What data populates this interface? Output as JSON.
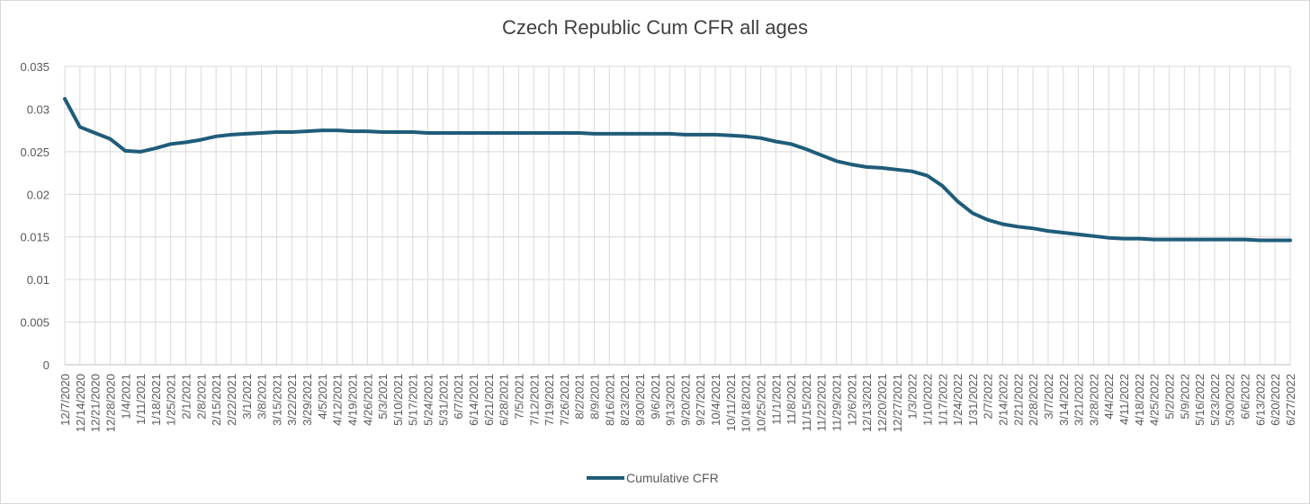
{
  "chart_data": {
    "type": "line",
    "title": "Czech Republic Cum CFR all ages",
    "xlabel": "",
    "ylabel": "",
    "ylim": [
      0,
      0.035
    ],
    "yticks": [
      "0",
      "0.005",
      "0.01",
      "0.015",
      "0.02",
      "0.025",
      "0.03",
      "0.035"
    ],
    "grid": true,
    "legend_position": "bottom",
    "series_color": "#1f5c7a",
    "categories": [
      "12/7/2020",
      "12/14/2020",
      "12/21/2020",
      "12/28/2020",
      "1/4/2021",
      "1/11/2021",
      "1/18/2021",
      "1/25/2021",
      "2/1/2021",
      "2/8/2021",
      "2/15/2021",
      "2/22/2021",
      "3/1/2021",
      "3/8/2021",
      "3/15/2021",
      "3/22/2021",
      "3/29/2021",
      "4/5/2021",
      "4/12/2021",
      "4/19/2021",
      "4/26/2021",
      "5/3/2021",
      "5/10/2021",
      "5/17/2021",
      "5/24/2021",
      "5/31/2021",
      "6/7/2021",
      "6/14/2021",
      "6/21/2021",
      "6/28/2021",
      "7/5/2021",
      "7/12/2021",
      "7/19/2021",
      "7/26/2021",
      "8/2/2021",
      "8/9/2021",
      "8/16/2021",
      "8/23/2021",
      "8/30/2021",
      "9/6/2021",
      "9/13/2021",
      "9/20/2021",
      "9/27/2021",
      "10/4/2021",
      "10/11/2021",
      "10/18/2021",
      "10/25/2021",
      "11/1/2021",
      "11/8/2021",
      "11/15/2021",
      "11/22/2021",
      "11/29/2021",
      "12/6/2021",
      "12/13/2021",
      "12/20/2021",
      "12/27/2021",
      "1/3/2022",
      "1/10/2022",
      "1/17/2022",
      "1/24/2022",
      "1/31/2022",
      "2/7/2022",
      "2/14/2022",
      "2/21/2022",
      "2/28/2022",
      "3/7/2022",
      "3/14/2022",
      "3/21/2022",
      "3/28/2022",
      "4/4/2022",
      "4/11/2022",
      "4/18/2022",
      "4/25/2022",
      "5/2/2022",
      "5/9/2022",
      "5/16/2022",
      "5/23/2022",
      "5/30/2022",
      "6/6/2022",
      "6/13/2022",
      "6/20/2022",
      "6/27/2022"
    ],
    "series": [
      {
        "name": "Cumulative CFR",
        "values": [
          0.0312,
          0.0279,
          0.0272,
          0.0265,
          0.0251,
          0.025,
          0.0254,
          0.0259,
          0.0261,
          0.0264,
          0.0268,
          0.027,
          0.0271,
          0.0272,
          0.0273,
          0.0273,
          0.0274,
          0.0275,
          0.0275,
          0.0274,
          0.0274,
          0.0273,
          0.0273,
          0.0273,
          0.0272,
          0.0272,
          0.0272,
          0.0272,
          0.0272,
          0.0272,
          0.0272,
          0.0272,
          0.0272,
          0.0272,
          0.0272,
          0.0271,
          0.0271,
          0.0271,
          0.0271,
          0.0271,
          0.0271,
          0.027,
          0.027,
          0.027,
          0.0269,
          0.0268,
          0.0266,
          0.0262,
          0.0259,
          0.0253,
          0.0246,
          0.0239,
          0.0235,
          0.0232,
          0.0231,
          0.0229,
          0.0227,
          0.0222,
          0.021,
          0.0192,
          0.0178,
          0.017,
          0.0165,
          0.0162,
          0.016,
          0.0157,
          0.0155,
          0.0153,
          0.0151,
          0.0149,
          0.0148,
          0.0148,
          0.0147,
          0.0147,
          0.0147,
          0.0147,
          0.0147,
          0.0147,
          0.0147,
          0.0146,
          0.0146,
          0.0146
        ]
      }
    ]
  }
}
